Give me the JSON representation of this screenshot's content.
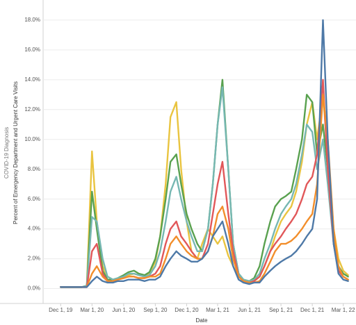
{
  "chart_data": {
    "type": "line",
    "y_label_group": "COVID-19 Diagnosis",
    "y_label": "Percent of Emergency Department and Urgent Care Visits",
    "x_label": "Date",
    "x": [
      "2019-12-01",
      "2019-12-15",
      "2020-01-01",
      "2020-01-15",
      "2020-02-01",
      "2020-02-15",
      "2020-03-01",
      "2020-03-15",
      "2020-04-01",
      "2020-04-15",
      "2020-05-01",
      "2020-05-15",
      "2020-06-01",
      "2020-06-15",
      "2020-07-01",
      "2020-07-15",
      "2020-08-01",
      "2020-08-15",
      "2020-09-01",
      "2020-09-15",
      "2020-10-01",
      "2020-10-15",
      "2020-11-01",
      "2020-11-15",
      "2020-12-01",
      "2020-12-15",
      "2021-01-01",
      "2021-01-15",
      "2021-02-01",
      "2021-02-15",
      "2021-03-01",
      "2021-03-15",
      "2021-04-01",
      "2021-04-15",
      "2021-05-01",
      "2021-05-15",
      "2021-06-01",
      "2021-06-15",
      "2021-07-01",
      "2021-07-15",
      "2021-08-01",
      "2021-08-15",
      "2021-09-01",
      "2021-09-15",
      "2021-10-01",
      "2021-10-15",
      "2021-11-01",
      "2021-11-15",
      "2021-12-01",
      "2021-12-15",
      "2022-01-01",
      "2022-01-15",
      "2022-02-01",
      "2022-02-15",
      "2022-03-01",
      "2022-03-15"
    ],
    "xlim": [
      "2019-10-11",
      "2022-04-07"
    ],
    "xticks": [
      {
        "value": "2019-12-01",
        "label": "Dec 1, 19"
      },
      {
        "value": "2020-03-01",
        "label": "Mar 1, 20"
      },
      {
        "value": "2020-06-01",
        "label": "Jun 1, 20"
      },
      {
        "value": "2020-09-01",
        "label": "Sep 1, 20"
      },
      {
        "value": "2020-12-01",
        "label": "Dec 1, 20"
      },
      {
        "value": "2021-03-01",
        "label": "Mar 1, 21"
      },
      {
        "value": "2021-06-01",
        "label": "Jun 1, 21"
      },
      {
        "value": "2021-09-01",
        "label": "Sep 1, 21"
      },
      {
        "value": "2021-12-01",
        "label": "Dec 1, 21"
      },
      {
        "value": "2022-03-01",
        "label": "Mar 1, 22"
      }
    ],
    "ylim": [
      -1,
      19.3
    ],
    "yticks": [
      {
        "value": 0,
        "label": "0.0%"
      },
      {
        "value": 2,
        "label": "2.0%"
      },
      {
        "value": 4,
        "label": "4.0%"
      },
      {
        "value": 6,
        "label": "6.0%"
      },
      {
        "value": 8,
        "label": "8.0%"
      },
      {
        "value": 10,
        "label": "10.0%"
      },
      {
        "value": 12,
        "label": "12.0%"
      },
      {
        "value": 14,
        "label": "14.0%"
      },
      {
        "value": 16,
        "label": "16.0%"
      },
      {
        "value": 18,
        "label": "18.0%"
      }
    ],
    "grid": true,
    "series": [
      {
        "color": "#e9c440",
        "values": [
          0.1,
          0.1,
          0.1,
          0.1,
          0.1,
          0.2,
          9.2,
          4.5,
          1.5,
          0.8,
          0.6,
          0.7,
          0.8,
          0.9,
          1.0,
          0.9,
          0.8,
          1.0,
          1.8,
          3.5,
          7.0,
          11.5,
          12.5,
          8.0,
          4.5,
          2.5,
          2.0,
          3.0,
          4.0,
          3.5,
          3.0,
          3.5,
          2.2,
          1.5,
          0.8,
          0.5,
          0.4,
          0.5,
          0.8,
          1.5,
          2.5,
          3.5,
          4.5,
          5.0,
          5.5,
          6.5,
          8.5,
          11.0,
          12.5,
          10.0,
          13.0,
          9.0,
          4.0,
          2.0,
          1.2,
          0.9
        ]
      },
      {
        "color": "#59a14f",
        "values": [
          0.1,
          0.1,
          0.1,
          0.1,
          0.1,
          0.2,
          6.5,
          4,
          1.2,
          0.6,
          0.6,
          0.7,
          0.9,
          1.1,
          1.2,
          1.0,
          0.9,
          1.1,
          2,
          3.5,
          6,
          8.5,
          9,
          7,
          5,
          4,
          3,
          2.5,
          4,
          7,
          11,
          14,
          8,
          3,
          1,
          0.6,
          0.5,
          0.7,
          1.5,
          3,
          4.5,
          5.5,
          6,
          6.2,
          6.5,
          8,
          10,
          13,
          12.5,
          9,
          11,
          8,
          3.5,
          1.5,
          1,
          0.8
        ]
      },
      {
        "color": "#76b7b2",
        "values": [
          0.1,
          0.1,
          0.1,
          0.1,
          0.1,
          0.2,
          4.8,
          4.5,
          2,
          0.8,
          0.6,
          0.7,
          0.8,
          1.0,
          1.0,
          0.9,
          0.8,
          0.9,
          1.5,
          2.5,
          4.5,
          6.5,
          7.5,
          6,
          4.5,
          3.5,
          2.5,
          2.5,
          4,
          7,
          11,
          13.5,
          8,
          3,
          1,
          0.6,
          0.5,
          0.6,
          1,
          2,
          3,
          4,
          5,
          5.5,
          6,
          7,
          9,
          11,
          10.5,
          8,
          10,
          7,
          3,
          1.2,
          0.8,
          0.6
        ]
      },
      {
        "color": "#e15759",
        "values": [
          0.1,
          0.1,
          0.1,
          0.1,
          0.1,
          0.1,
          2.5,
          3,
          1,
          0.5,
          0.5,
          0.6,
          0.7,
          0.8,
          0.8,
          0.7,
          0.7,
          0.8,
          1,
          1.5,
          3,
          4,
          4.5,
          3.5,
          3,
          2.5,
          2,
          2,
          3,
          5,
          7,
          8.5,
          5,
          2.5,
          0.8,
          0.5,
          0.4,
          0.5,
          0.8,
          1.5,
          2.5,
          3,
          3.5,
          4,
          4.5,
          5,
          6,
          7,
          7.5,
          9,
          14,
          8,
          3,
          1.2,
          0.8,
          0.6
        ]
      },
      {
        "color": "#f28e2b",
        "values": [
          0.1,
          0.1,
          0.1,
          0.1,
          0.1,
          0.1,
          1,
          1.5,
          0.8,
          0.5,
          0.5,
          0.6,
          0.7,
          0.8,
          0.8,
          0.7,
          0.7,
          0.8,
          0.8,
          1,
          2,
          3,
          3.5,
          3,
          2.5,
          2.2,
          2,
          2,
          2.5,
          3.5,
          5,
          5.5,
          4,
          2,
          0.8,
          0.5,
          0.4,
          0.4,
          0.5,
          1,
          1.8,
          2.5,
          3,
          3,
          3.2,
          3.5,
          4,
          4.5,
          5,
          7,
          13,
          10,
          4,
          1.5,
          0.8,
          0.6
        ]
      },
      {
        "color": "#4e79a7",
        "values": [
          0.1,
          0.1,
          0.1,
          0.1,
          0.1,
          0.1,
          0.5,
          0.8,
          0.5,
          0.4,
          0.4,
          0.5,
          0.5,
          0.6,
          0.6,
          0.6,
          0.5,
          0.6,
          0.6,
          0.8,
          1.5,
          2,
          2.5,
          2.2,
          2,
          1.8,
          1.8,
          2,
          2.5,
          3.5,
          4,
          4.5,
          3,
          1.5,
          0.6,
          0.4,
          0.3,
          0.4,
          0.4,
          0.8,
          1.2,
          1.5,
          1.8,
          2,
          2.2,
          2.5,
          3,
          3.5,
          4,
          6,
          18,
          10,
          3,
          1,
          0.6,
          0.5
        ]
      }
    ]
  }
}
